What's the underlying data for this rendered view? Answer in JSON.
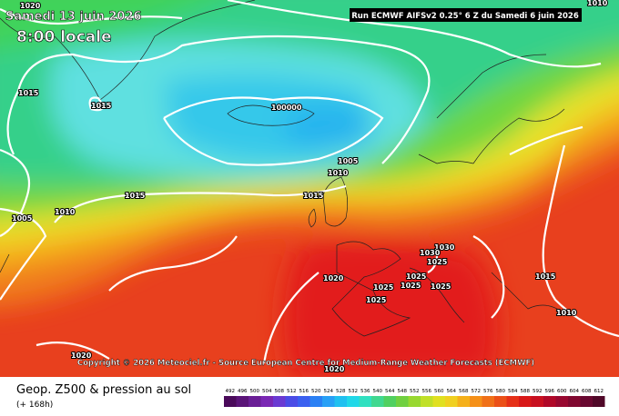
{
  "header": {
    "date": "Samedi 13 juin 2026",
    "local_time": "8:00 locale",
    "run": "Run ECMWF AIFSv2 0.25° 6 Z du Samedi 6 juin 2026"
  },
  "pressure_labels": [
    "1020",
    "1010",
    "1015",
    "1015",
    "100000",
    "1005",
    "1010",
    "1015",
    "1015",
    "1010",
    "1005",
    "1030",
    "1030",
    "1025",
    "1020",
    "1025",
    "1025",
    "1025",
    "1025",
    "1025",
    "1015",
    "1010",
    "1020",
    "1020"
  ],
  "copyright": "Copyright © 2026 Meteociel.fr - Source European Centre for Medium-Range Weather Forecasts (ECMWF)",
  "footer": {
    "title": "Geop. Z500 & pression au sol",
    "subtitle": "(+ 168h)"
  },
  "scale": [
    "492",
    "496",
    "500",
    "504",
    "508",
    "512",
    "516",
    "520",
    "524",
    "528",
    "532",
    "536",
    "540",
    "544",
    "548",
    "552",
    "556",
    "560",
    "564",
    "568",
    "572",
    "576",
    "580",
    "584",
    "588",
    "592",
    "596",
    "600",
    "604",
    "608",
    "612"
  ]
}
